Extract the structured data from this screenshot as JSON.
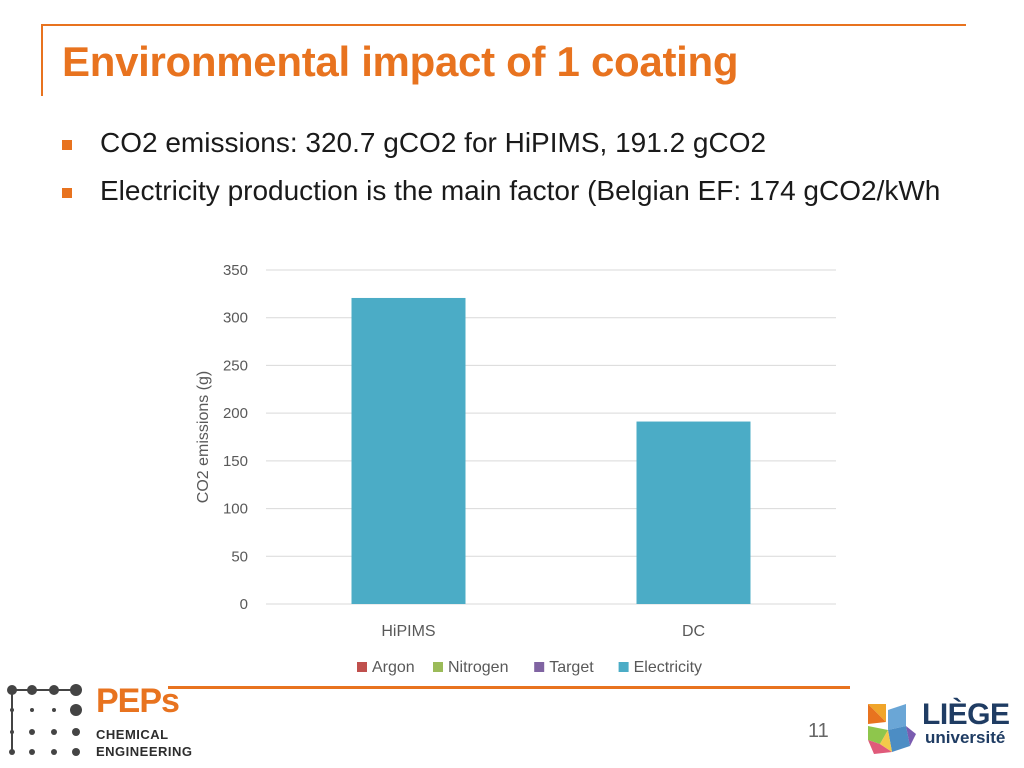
{
  "slide": {
    "title": "Environmental impact of 1 coating",
    "bullets": [
      "CO2 emissions: 320.7 gCO2 for HiPIMS, 191.2 gCO2",
      "Electricity production is the main factor (Belgian EF: 174 gCO2/kWh"
    ],
    "page_number": "11",
    "accent_color": "#e8731f"
  },
  "logos": {
    "peps": {
      "name": "PEPs",
      "line1": "CHEMICAL",
      "line2": "ENGINEERING"
    },
    "uliege": {
      "name": "LIÈGE",
      "subtitle": "université"
    }
  },
  "chart_data": {
    "type": "bar",
    "categories": [
      "HiPIMS",
      "DC"
    ],
    "series": [
      {
        "name": "Argon",
        "color": "#c0504d",
        "values": [
          0,
          0
        ]
      },
      {
        "name": "Nitrogen",
        "color": "#9bbb59",
        "values": [
          0,
          0
        ]
      },
      {
        "name": "Target",
        "color": "#8064a2",
        "values": [
          0,
          0
        ]
      },
      {
        "name": "Electricity",
        "color": "#4bacc6",
        "values": [
          320.7,
          191.2
        ]
      }
    ],
    "stacked": true,
    "title": "",
    "xlabel": "",
    "ylabel": "CO2 emissions (g)",
    "ylim": [
      0,
      350
    ],
    "yticks": [
      0,
      50,
      100,
      150,
      200,
      250,
      300,
      350
    ],
    "grid": true,
    "legend": "bottom"
  }
}
